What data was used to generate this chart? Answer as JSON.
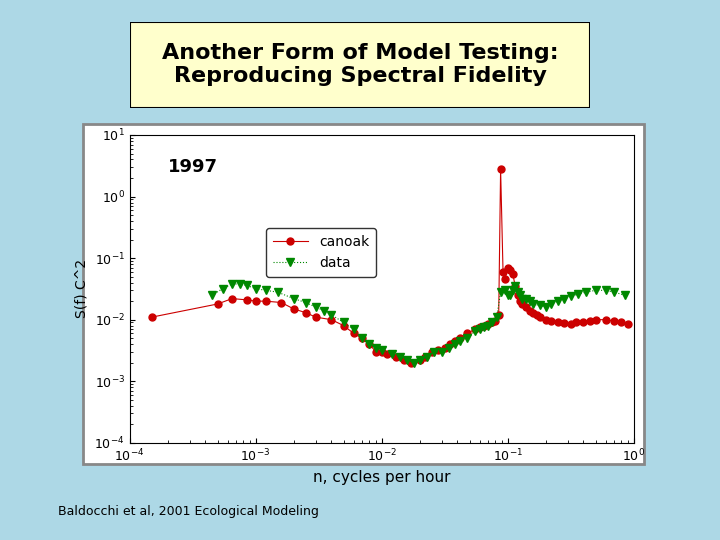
{
  "title": "Another Form of Model Testing:\nReproducing Spectral Fidelity",
  "subtitle": "Baldocchi et al, 2001 Ecological Modeling",
  "background_color": "#add8e6",
  "title_box_color": "#ffffcc",
  "plot_bg_color": "#ffffff",
  "xlabel": "n, cycles per hour",
  "ylabel": "S(f) C^2",
  "year_label": "1997",
  "legend_canoak": "canoak",
  "legend_data": "data",
  "canoak_color": "#cc0000",
  "data_color": "#008800",
  "xlim_log": [
    -4,
    0
  ],
  "ylim_log": [
    -4,
    1
  ],
  "canoak_x": [
    0.00015,
    0.0005,
    0.00065,
    0.00085,
    0.001,
    0.0012,
    0.0016,
    0.002,
    0.0025,
    0.003,
    0.004,
    0.005,
    0.006,
    0.007,
    0.008,
    0.009,
    0.01,
    0.011,
    0.013,
    0.015,
    0.017,
    0.02,
    0.022,
    0.025,
    0.028,
    0.032,
    0.035,
    0.038,
    0.042,
    0.048,
    0.055,
    0.06,
    0.065,
    0.07,
    0.075,
    0.08,
    0.085,
    0.088,
    0.092,
    0.095,
    0.1,
    0.105,
    0.11,
    0.115,
    0.12,
    0.125,
    0.13,
    0.14,
    0.15,
    0.16,
    0.17,
    0.18,
    0.2,
    0.22,
    0.25,
    0.28,
    0.32,
    0.35,
    0.4,
    0.45,
    0.5,
    0.6,
    0.7,
    0.8,
    0.9
  ],
  "canoak_y": [
    0.011,
    0.018,
    0.022,
    0.021,
    0.02,
    0.02,
    0.019,
    0.015,
    0.013,
    0.011,
    0.01,
    0.008,
    0.006,
    0.005,
    0.004,
    0.003,
    0.003,
    0.0028,
    0.0025,
    0.0022,
    0.002,
    0.0022,
    0.0025,
    0.003,
    0.0032,
    0.0035,
    0.004,
    0.0045,
    0.005,
    0.006,
    0.007,
    0.0075,
    0.008,
    0.0085,
    0.009,
    0.0095,
    0.012,
    2.8,
    0.06,
    0.045,
    0.07,
    0.065,
    0.055,
    0.035,
    0.025,
    0.02,
    0.018,
    0.016,
    0.014,
    0.013,
    0.012,
    0.011,
    0.01,
    0.0095,
    0.009,
    0.0088,
    0.0085,
    0.009,
    0.0092,
    0.0095,
    0.01,
    0.01,
    0.0095,
    0.009,
    0.0085
  ],
  "data_x": [
    0.00045,
    0.00055,
    0.00065,
    0.00075,
    0.00085,
    0.001,
    0.0012,
    0.0015,
    0.002,
    0.0025,
    0.003,
    0.0035,
    0.004,
    0.005,
    0.006,
    0.007,
    0.008,
    0.009,
    0.01,
    0.012,
    0.014,
    0.016,
    0.018,
    0.02,
    0.023,
    0.026,
    0.03,
    0.034,
    0.038,
    0.042,
    0.048,
    0.055,
    0.06,
    0.065,
    0.07,
    0.075,
    0.082,
    0.088,
    0.095,
    0.1,
    0.105,
    0.11,
    0.115,
    0.12,
    0.125,
    0.13,
    0.14,
    0.15,
    0.16,
    0.18,
    0.2,
    0.22,
    0.25,
    0.28,
    0.32,
    0.36,
    0.42,
    0.5,
    0.6,
    0.7,
    0.85
  ],
  "data_y": [
    0.025,
    0.032,
    0.038,
    0.038,
    0.036,
    0.032,
    0.03,
    0.028,
    0.022,
    0.019,
    0.016,
    0.014,
    0.012,
    0.009,
    0.007,
    0.005,
    0.004,
    0.0035,
    0.0032,
    0.0028,
    0.0025,
    0.0022,
    0.002,
    0.0022,
    0.0025,
    0.003,
    0.003,
    0.0035,
    0.004,
    0.0045,
    0.005,
    0.0065,
    0.007,
    0.0075,
    0.008,
    0.009,
    0.011,
    0.028,
    0.03,
    0.025,
    0.025,
    0.03,
    0.035,
    0.028,
    0.025,
    0.022,
    0.022,
    0.02,
    0.018,
    0.017,
    0.016,
    0.018,
    0.02,
    0.022,
    0.024,
    0.026,
    0.028,
    0.03,
    0.03,
    0.028,
    0.025
  ]
}
